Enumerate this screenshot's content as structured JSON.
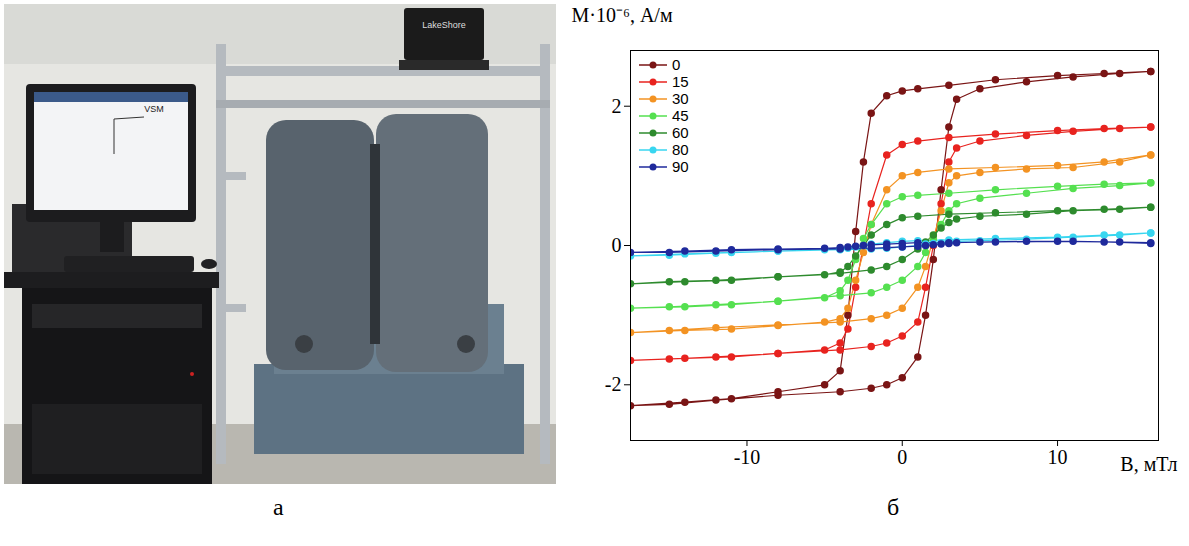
{
  "chart_data": {
    "type": "line",
    "x_label": "B, мТл",
    "y_label": "M·10⁻⁶, А/м",
    "xlim": [
      -17.5,
      16.5
    ],
    "xticks": [
      -10,
      0,
      10
    ],
    "ylim": [
      -2.8,
      2.8
    ],
    "yticks": [
      -2,
      0,
      2
    ],
    "grid": false,
    "legend": "top-left",
    "marker": "circle",
    "line_style": "solid",
    "x": [
      16,
      13,
      10,
      6,
      3,
      1,
      0,
      -1,
      -2,
      -2.5,
      -3,
      -3.5,
      -4,
      -5,
      -8,
      -11,
      -14,
      -17.5,
      -15,
      -12,
      -8,
      -4,
      -2,
      -1,
      0,
      1,
      1.5,
      2,
      2.5,
      3,
      3.5,
      5,
      8,
      11,
      14,
      16
    ],
    "series": [
      {
        "name": "0",
        "color": "#7a1515",
        "values": [
          2.5,
          2.47,
          2.44,
          2.38,
          2.3,
          2.25,
          2.22,
          2.15,
          1.9,
          1.2,
          0.2,
          -1.0,
          -1.8,
          -2.0,
          -2.1,
          -2.2,
          -2.25,
          -2.3,
          -2.28,
          -2.22,
          -2.15,
          -2.1,
          -2.05,
          -2.0,
          -1.9,
          -1.6,
          -1.0,
          -0.2,
          0.8,
          1.7,
          2.1,
          2.25,
          2.35,
          2.42,
          2.47,
          2.5
        ]
      },
      {
        "name": "15",
        "color": "#e8231f",
        "values": [
          1.7,
          1.68,
          1.65,
          1.6,
          1.55,
          1.5,
          1.45,
          1.3,
          0.6,
          0.0,
          -0.6,
          -1.2,
          -1.4,
          -1.5,
          -1.55,
          -1.6,
          -1.62,
          -1.65,
          -1.63,
          -1.6,
          -1.55,
          -1.5,
          -1.45,
          -1.4,
          -1.3,
          -1.1,
          -0.6,
          0.0,
          0.6,
          1.2,
          1.4,
          1.5,
          1.58,
          1.64,
          1.68,
          1.7
        ]
      },
      {
        "name": "30",
        "color": "#f39323",
        "values": [
          1.3,
          1.2,
          1.15,
          1.12,
          1.1,
          1.05,
          1.0,
          0.8,
          0.3,
          -0.1,
          -0.5,
          -0.9,
          -1.05,
          -1.1,
          -1.15,
          -1.2,
          -1.22,
          -1.25,
          -1.22,
          -1.18,
          -1.14,
          -1.1,
          -1.05,
          -1.0,
          -0.9,
          -0.6,
          -0.3,
          0.1,
          0.5,
          0.9,
          1.0,
          1.05,
          1.1,
          1.12,
          1.2,
          1.3
        ]
      },
      {
        "name": "45",
        "color": "#55e050",
        "values": [
          0.9,
          0.88,
          0.85,
          0.8,
          0.75,
          0.72,
          0.7,
          0.6,
          0.3,
          0.1,
          -0.2,
          -0.5,
          -0.65,
          -0.75,
          -0.8,
          -0.85,
          -0.88,
          -0.9,
          -0.88,
          -0.85,
          -0.8,
          -0.72,
          -0.68,
          -0.6,
          -0.5,
          -0.3,
          -0.1,
          0.1,
          0.3,
          0.5,
          0.6,
          0.68,
          0.75,
          0.82,
          0.86,
          0.9
        ]
      },
      {
        "name": "60",
        "color": "#2e8b2e",
        "values": [
          0.55,
          0.52,
          0.5,
          0.47,
          0.45,
          0.42,
          0.4,
          0.3,
          0.15,
          0.0,
          -0.15,
          -0.3,
          -0.38,
          -0.42,
          -0.45,
          -0.5,
          -0.52,
          -0.55,
          -0.52,
          -0.5,
          -0.45,
          -0.4,
          -0.35,
          -0.3,
          -0.2,
          -0.05,
          0.05,
          0.15,
          0.25,
          0.33,
          0.38,
          0.42,
          0.45,
          0.5,
          0.52,
          0.55
        ]
      },
      {
        "name": "80",
        "color": "#38d6f0",
        "values": [
          0.18,
          0.15,
          0.12,
          0.1,
          0.08,
          0.07,
          0.06,
          0.04,
          0.02,
          0.0,
          -0.02,
          -0.04,
          -0.05,
          -0.06,
          -0.08,
          -0.1,
          -0.12,
          -0.15,
          -0.14,
          -0.11,
          -0.08,
          -0.06,
          -0.05,
          -0.04,
          -0.02,
          0.0,
          0.02,
          0.03,
          0.04,
          0.05,
          0.06,
          0.07,
          0.09,
          0.12,
          0.15,
          0.18
        ]
      },
      {
        "name": "90",
        "color": "#1f2a9c",
        "values": [
          0.03,
          0.05,
          0.06,
          0.05,
          0.04,
          0.04,
          0.03,
          0.02,
          0.01,
          0.0,
          -0.01,
          -0.02,
          -0.03,
          -0.04,
          -0.05,
          -0.06,
          -0.08,
          -0.1,
          -0.1,
          -0.08,
          -0.06,
          -0.05,
          -0.04,
          -0.03,
          -0.02,
          -0.01,
          0.0,
          0.01,
          0.02,
          0.03,
          0.04,
          0.05,
          0.06,
          0.06,
          0.05,
          0.04
        ]
      }
    ]
  },
  "photo": {
    "labels": [
      "LakeShore",
      "VSM"
    ]
  },
  "panel_labels": [
    "а",
    "б"
  ]
}
